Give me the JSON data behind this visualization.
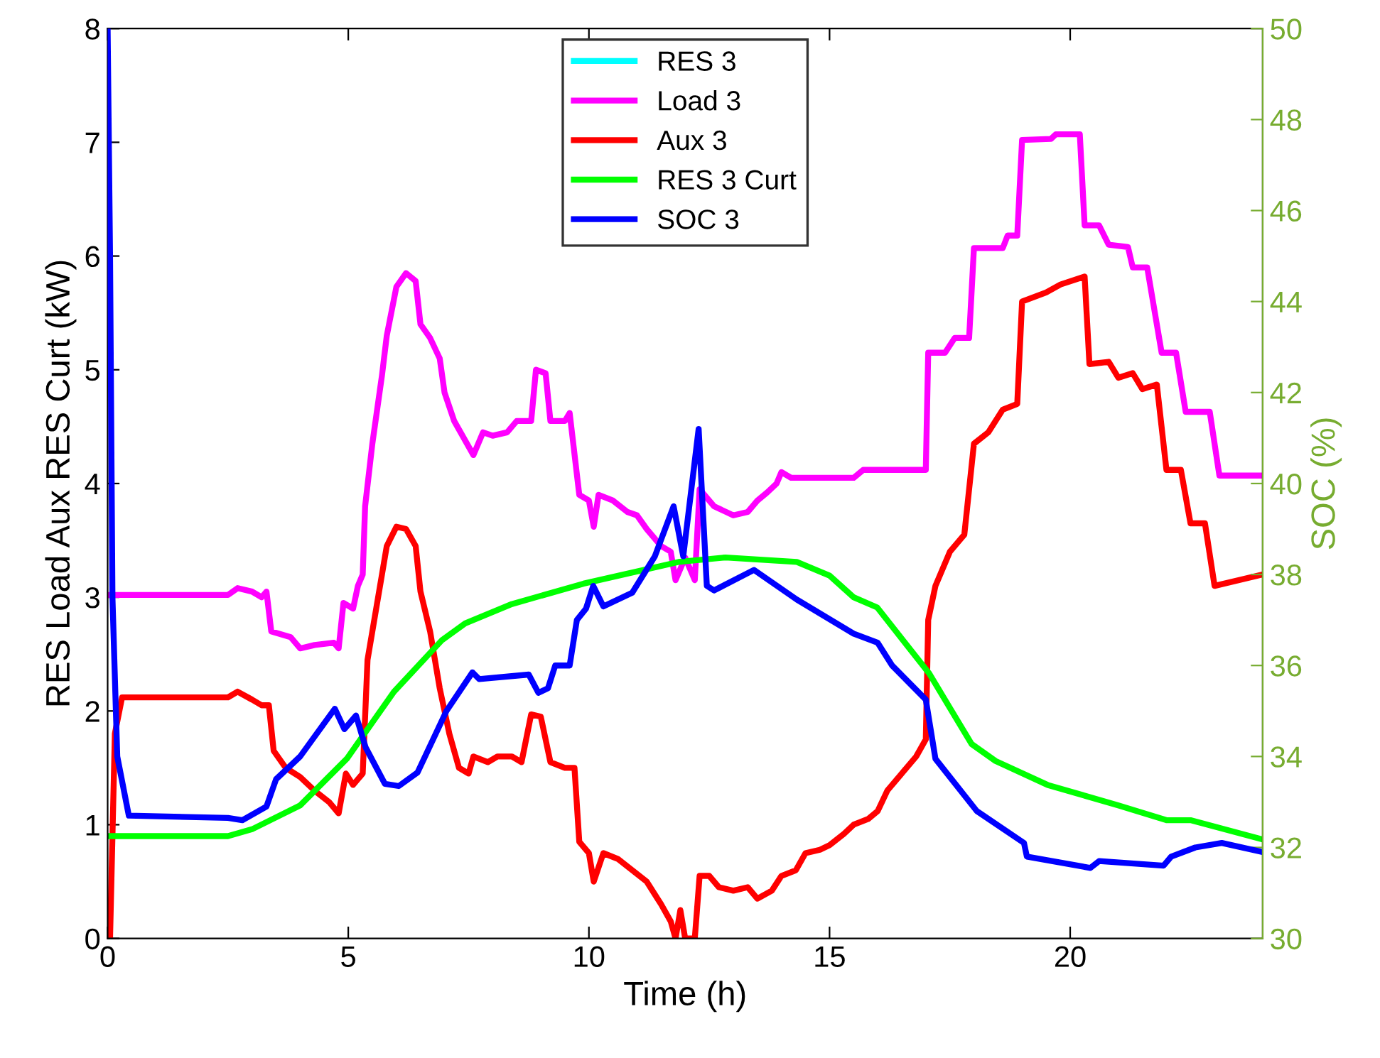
{
  "chart_data": {
    "type": "line",
    "xlabel": "Time (h)",
    "ylabel": "RES Load Aux RES Curt (kW)",
    "y2label": "SOC (%)",
    "xlim": [
      0,
      24
    ],
    "xticks": [
      0,
      5,
      10,
      15,
      20
    ],
    "ylim": [
      0,
      8
    ],
    "yticks": [
      0,
      1,
      2,
      3,
      4,
      5,
      6,
      7,
      8
    ],
    "y2lim": [
      30,
      50
    ],
    "y2ticks": [
      30,
      32,
      34,
      36,
      38,
      40,
      42,
      44,
      46,
      48,
      50
    ],
    "grid": false,
    "legend": "top",
    "marker": "none",
    "line_style": "solid",
    "series": [
      {
        "name": "RES 3",
        "color": "#00ffff"
      },
      {
        "name": "Load 3",
        "color": "#ff00ff",
        "x": [
          0,
          2.5,
          2.7,
          3.0,
          3.2,
          3.3,
          3.4,
          3.8,
          4.0,
          4.3,
          4.7,
          4.8,
          4.9,
          5.1,
          5.2,
          5.3,
          5.35,
          5.5,
          5.7,
          5.8,
          6.0,
          6.2,
          6.4,
          6.5,
          6.7,
          6.9,
          7.0,
          7.2,
          7.4,
          7.6,
          7.8,
          8.0,
          8.3,
          8.5,
          8.8,
          8.9,
          9.1,
          9.2,
          9.5,
          9.6,
          9.8,
          10.0,
          10.1,
          10.2,
          10.5,
          10.8,
          11.0,
          11.2,
          11.5,
          11.7,
          11.8,
          12.0,
          12.2,
          12.3,
          12.6,
          13.0,
          13.3,
          13.5,
          13.7,
          13.9,
          14.0,
          14.2,
          15.0,
          15.5,
          15.7,
          17.0,
          17.05,
          17.4,
          17.6,
          17.9,
          18.0,
          18.6,
          18.7,
          18.9,
          19.0,
          19.6,
          19.7,
          20.2,
          20.3,
          20.6,
          20.8,
          21.2,
          21.3,
          21.6,
          21.9,
          22.2,
          22.4,
          22.9,
          23.1,
          24.0
        ],
        "values": [
          3.02,
          3.02,
          3.08,
          3.05,
          3.0,
          3.05,
          2.7,
          2.65,
          2.55,
          2.58,
          2.6,
          2.55,
          2.95,
          2.9,
          3.1,
          3.2,
          3.8,
          4.35,
          4.95,
          5.3,
          5.73,
          5.85,
          5.78,
          5.4,
          5.28,
          5.1,
          4.8,
          4.55,
          4.4,
          4.25,
          4.45,
          4.42,
          4.45,
          4.55,
          4.55,
          5.0,
          4.97,
          4.55,
          4.55,
          4.62,
          3.9,
          3.85,
          3.62,
          3.9,
          3.85,
          3.75,
          3.72,
          3.6,
          3.45,
          3.4,
          3.15,
          3.35,
          3.15,
          3.95,
          3.8,
          3.72,
          3.75,
          3.85,
          3.92,
          4.0,
          4.1,
          4.05,
          4.05,
          4.05,
          4.12,
          4.12,
          5.15,
          5.15,
          5.28,
          5.28,
          6.07,
          6.07,
          6.18,
          6.18,
          7.02,
          7.03,
          7.07,
          7.07,
          6.27,
          6.27,
          6.1,
          6.08,
          5.9,
          5.9,
          5.15,
          5.15,
          4.63,
          4.63,
          4.07,
          4.07
        ]
      },
      {
        "name": "Aux 3",
        "color": "#ff0000",
        "x": [
          0,
          0.05,
          0.15,
          0.3,
          2.5,
          2.7,
          3.0,
          3.2,
          3.35,
          3.45,
          3.7,
          4.0,
          4.3,
          4.6,
          4.8,
          4.95,
          5.1,
          5.3,
          5.4,
          5.6,
          5.7,
          5.8,
          6.0,
          6.2,
          6.4,
          6.5,
          6.7,
          6.9,
          7.1,
          7.3,
          7.5,
          7.6,
          7.9,
          8.1,
          8.4,
          8.6,
          8.8,
          9.0,
          9.2,
          9.5,
          9.7,
          9.8,
          10.0,
          10.1,
          10.3,
          10.6,
          10.9,
          11.2,
          11.5,
          11.7,
          11.8,
          11.9,
          12.0,
          12.2,
          12.3,
          12.5,
          12.7,
          13.0,
          13.3,
          13.5,
          13.8,
          14.0,
          14.3,
          14.5,
          14.8,
          15.0,
          15.3,
          15.5,
          15.8,
          16.0,
          16.2,
          16.5,
          16.8,
          17.0,
          17.05,
          17.2,
          17.5,
          17.8,
          18.0,
          18.3,
          18.6,
          18.9,
          19.0,
          19.5,
          19.8,
          20.3,
          20.4,
          20.8,
          21.0,
          21.3,
          21.5,
          21.8,
          22.0,
          22.3,
          22.5,
          22.8,
          23.0,
          24.0
        ],
        "values": [
          0,
          0,
          1.8,
          2.12,
          2.12,
          2.17,
          2.1,
          2.05,
          2.05,
          1.65,
          1.5,
          1.42,
          1.3,
          1.2,
          1.1,
          1.45,
          1.35,
          1.45,
          2.45,
          2.95,
          3.2,
          3.45,
          3.62,
          3.6,
          3.45,
          3.05,
          2.7,
          2.2,
          1.8,
          1.5,
          1.45,
          1.6,
          1.55,
          1.6,
          1.6,
          1.55,
          1.97,
          1.95,
          1.55,
          1.5,
          1.5,
          0.85,
          0.75,
          0.5,
          0.75,
          0.7,
          0.6,
          0.5,
          0.3,
          0.15,
          0,
          0.25,
          0,
          0,
          0.55,
          0.55,
          0.45,
          0.42,
          0.45,
          0.35,
          0.42,
          0.55,
          0.6,
          0.75,
          0.78,
          0.82,
          0.92,
          1.0,
          1.05,
          1.12,
          1.3,
          1.45,
          1.6,
          1.75,
          2.8,
          3.1,
          3.4,
          3.55,
          4.35,
          4.45,
          4.65,
          4.7,
          5.6,
          5.68,
          5.75,
          5.82,
          5.05,
          5.07,
          4.93,
          4.97,
          4.83,
          4.87,
          4.12,
          4.12,
          3.65,
          3.65,
          3.1,
          3.2
        ]
      },
      {
        "name": "RES 3 Curt",
        "color": "#00ff00",
        "x": [
          0,
          2.5,
          3.0,
          4.0,
          4.97,
          5.95,
          6.94,
          7.43,
          8.4,
          9.89,
          11.86,
          12.84,
          14.32,
          15.0,
          15.5,
          15.99,
          17.07,
          17.95,
          18.45,
          19.53,
          21.0,
          22.0,
          22.5,
          24.0
        ],
        "values": [
          0.9,
          0.9,
          0.96,
          1.17,
          1.58,
          2.17,
          2.62,
          2.77,
          2.94,
          3.12,
          3.31,
          3.35,
          3.31,
          3.19,
          3.0,
          2.91,
          2.33,
          1.71,
          1.56,
          1.35,
          1.17,
          1.04,
          1.04,
          0.87
        ]
      },
      {
        "name": "SOC 3",
        "color": "#0000ff",
        "axis": "y2",
        "x": [
          0,
          0.05,
          0.1,
          0.2,
          0.44,
          2.5,
          2.8,
          3.3,
          3.5,
          4.0,
          4.72,
          4.92,
          5.16,
          5.36,
          5.76,
          6.05,
          6.44,
          7.04,
          7.58,
          7.72,
          8.75,
          8.95,
          9.15,
          9.3,
          9.6,
          9.75,
          9.94,
          10.09,
          10.3,
          10.9,
          11.37,
          11.76,
          11.96,
          12.28,
          12.45,
          12.6,
          13.43,
          14.32,
          15.5,
          16.0,
          16.3,
          17.0,
          17.2,
          18.06,
          19.04,
          19.1,
          20.42,
          20.6,
          21.94,
          22.1,
          22.6,
          23.15,
          24.0
        ],
        "values": [
          50,
          45,
          37.5,
          34,
          32.7,
          32.65,
          32.6,
          32.9,
          33.5,
          34,
          35.05,
          34.6,
          34.9,
          34.2,
          33.4,
          33.35,
          33.65,
          35,
          35.85,
          35.7,
          35.8,
          35.4,
          35.5,
          36,
          36,
          37,
          37.25,
          37.75,
          37.3,
          37.6,
          38.4,
          39.5,
          38.4,
          41.2,
          37.75,
          37.65,
          38.1,
          37.45,
          36.7,
          36.5,
          36,
          35.25,
          33.95,
          32.8,
          32.1,
          31.8,
          31.55,
          31.7,
          31.6,
          31.8,
          32,
          32.1,
          31.9
        ]
      }
    ]
  }
}
